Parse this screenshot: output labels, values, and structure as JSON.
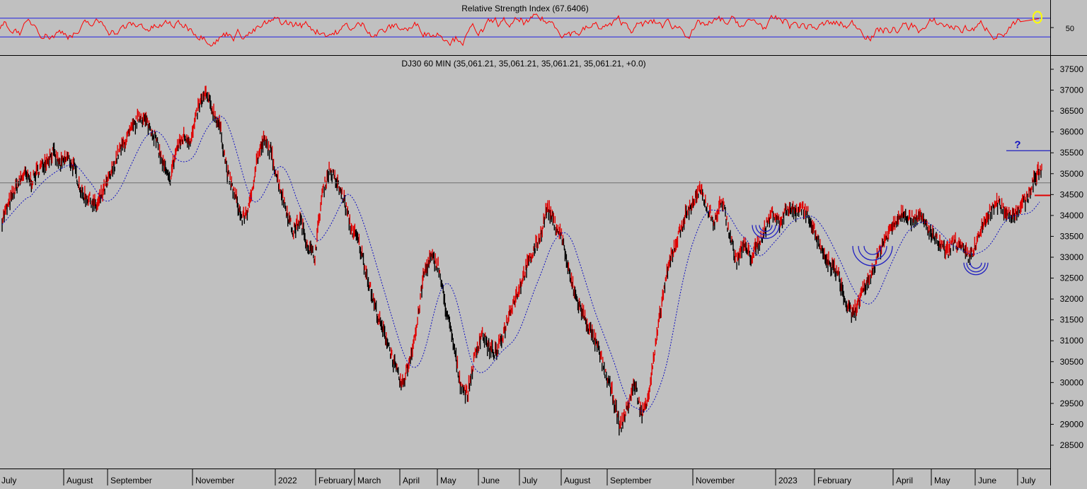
{
  "chart_data": {
    "type": "line",
    "instrument": "DJ30",
    "timeframe": "60 MIN",
    "title": "DJ30 60 MIN (35,061.21, 35,061.21, 35,061.21, 35,061.21, +0.0)",
    "ylim": [
      28000,
      37800
    ],
    "y_ticks": [
      28500,
      29000,
      29500,
      30000,
      30500,
      31000,
      31500,
      32000,
      32500,
      33000,
      33500,
      34000,
      34500,
      35000,
      35500,
      36000,
      36500,
      37000,
      37500
    ],
    "y_tick_labels": [
      "28500",
      "29000",
      "29500",
      "30000",
      "30500",
      "31000",
      "31500",
      "32000",
      "32500",
      "33000",
      "33500",
      "34000",
      "34500",
      "35000",
      "35500",
      "36000",
      "36500",
      "37000",
      "37500"
    ],
    "x_labels": [
      "July",
      "August",
      "September",
      "November",
      "2022",
      "February",
      "March",
      "April",
      "May",
      "June",
      "July",
      "August",
      "September",
      "November",
      "2023",
      "February",
      "April",
      "May",
      "June",
      "July"
    ],
    "x_label_frac": [
      0.0,
      0.063,
      0.105,
      0.19,
      0.27,
      0.31,
      0.347,
      0.393,
      0.428,
      0.475,
      0.51,
      0.547,
      0.605,
      0.675,
      0.758,
      0.795,
      0.875,
      0.912,
      0.95,
      0.99
    ],
    "series": [
      {
        "values": [
          33900,
          34300,
          34700,
          35000,
          34800,
          35100,
          35300,
          35500,
          35200,
          35400,
          35100,
          34500,
          34400,
          34200,
          34600,
          35000,
          35500,
          35800,
          36100,
          36400,
          36200,
          35900,
          35300,
          34800,
          35600,
          35900,
          35800,
          36600,
          36900,
          36500,
          36100,
          35000,
          34500,
          33900,
          34200,
          35300,
          35800,
          35500,
          34800,
          34200,
          33600,
          33900,
          33300,
          33000,
          34500,
          35100,
          34800,
          34400,
          33700,
          33400,
          32700,
          32000,
          31400,
          31000,
          30400,
          29900,
          30500,
          31300,
          32600,
          33000,
          32800,
          31800,
          31000,
          30000,
          29700,
          30600,
          31200,
          30800,
          30700,
          31200,
          31800,
          32200,
          32700,
          33100,
          33500,
          34200,
          33800,
          33500,
          32600,
          32000,
          31600,
          31200,
          30800,
          30200,
          29700,
          28900,
          29400,
          30000,
          29200,
          29800,
          31000,
          32200,
          33000,
          33500,
          34000,
          34300,
          34600,
          34200,
          33800,
          34400,
          33600,
          32900,
          33300,
          33000,
          33300,
          33700,
          34100,
          33800,
          34200,
          34100,
          34200,
          34000,
          33500,
          33000,
          32800,
          32600,
          31900,
          31600,
          32000,
          32400,
          32800,
          33300,
          33600,
          33900,
          34100,
          33900,
          34000,
          33800,
          33500,
          33300,
          33100,
          33400,
          33200,
          33000,
          33300,
          33800,
          34100,
          34300,
          34100,
          34000,
          34200,
          34400,
          34900,
          35100
        ]
      }
    ],
    "annotations": {
      "question_mark": "?",
      "target_level": 35550,
      "horizontal_line_level": 34780,
      "red_marker_level": 34480,
      "arc_markers": [
        33600,
        33100,
        32700
      ]
    }
  },
  "rsi": {
    "title": "Relative Strength Index (67.6406)",
    "tick_label": "50",
    "upper_line": 70,
    "lower_line": 30,
    "ylim": [
      0,
      100
    ],
    "current_value": 67.6406
  },
  "colors": {
    "background": "#c0c0c0",
    "price_up": "#e00000",
    "price_down": "#000000",
    "moving_average": "#1010c0",
    "rsi_line": "#ff0000",
    "rsi_levels": "#2020e0",
    "arc_marker": "#2020c0",
    "target_line": "#2020c0",
    "reference_line": "#707070",
    "highlight_circle": "#ffff00"
  }
}
